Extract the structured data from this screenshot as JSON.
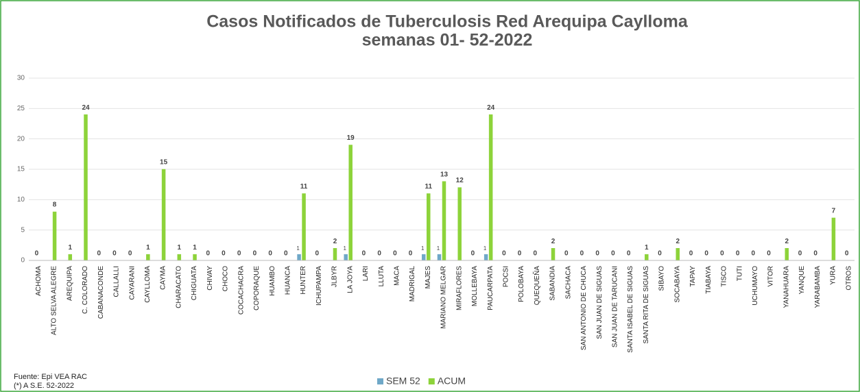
{
  "chart_data": {
    "type": "bar",
    "title": "Casos Notificados de Tuberculosis Red Arequipa Caylloma",
    "subtitle": "semanas 01- 52-2022",
    "categories": [
      "ACHOMA",
      "ALTO SELVA ALEGRE",
      "AREQUIPA",
      "C. COLORADO",
      "CABANACONDE",
      "CALLALLI",
      "CAYARANI",
      "CAYLLOMA",
      "CAYMA",
      "CHARACATO",
      "CHIGUATA",
      "CHIVAY",
      "CHOCO",
      "COCACHACRA",
      "COPORAQUE",
      "HUAMBO",
      "HUANCA",
      "HUNTER",
      "ICHUPAMPA",
      "JLBYR",
      "LA JOYA",
      "LARI",
      "LLUTA",
      "MACA",
      "MADRIGAL",
      "MAJES",
      "MARIANO MELGAR",
      "MIRAFLORES",
      "MOLLEBAYA",
      "PAUCARPATA",
      "POCSI",
      "POLOBAYA",
      "QUEQUEÑA",
      "SABANDIA",
      "SACHACA",
      "SAN ANTONIO DE CHUCA",
      "SAN JUAN DE SIGUAS",
      "SAN JUAN DE TARUCANI",
      "SANTA ISABEL DE SIGUAS",
      "SANTA RITA DE SIGUAS",
      "SIBAYO",
      "SOCABAYA",
      "TAPAY",
      "TIABAYA",
      "TISCO",
      "TUTI",
      "UCHUMAYO",
      "VITOR",
      "YANAHUARA",
      "YANQUE",
      "YARABAMBA",
      "YURA",
      "OTROS"
    ],
    "series": [
      {
        "name": "SEM 52",
        "color": "#6fa8c8",
        "values": [
          0,
          0,
          0,
          0,
          0,
          0,
          0,
          0,
          0,
          0,
          0,
          0,
          0,
          0,
          0,
          0,
          0,
          1,
          0,
          0,
          1,
          0,
          0,
          0,
          0,
          1,
          1,
          0,
          0,
          1,
          0,
          0,
          0,
          0,
          0,
          0,
          0,
          0,
          0,
          0,
          0,
          0,
          0,
          0,
          0,
          0,
          0,
          0,
          0,
          0,
          0,
          0,
          0
        ]
      },
      {
        "name": "ACUM",
        "color": "#8dd33a",
        "values": [
          0,
          8,
          1,
          24,
          0,
          0,
          0,
          1,
          15,
          1,
          1,
          0,
          0,
          0,
          0,
          0,
          0,
          11,
          0,
          2,
          19,
          0,
          0,
          0,
          0,
          11,
          13,
          12,
          0,
          24,
          0,
          0,
          0,
          2,
          0,
          0,
          0,
          0,
          0,
          1,
          0,
          2,
          0,
          0,
          0,
          0,
          0,
          0,
          2,
          0,
          0,
          7,
          0
        ]
      }
    ],
    "ylim": [
      0,
      30
    ],
    "yticks": [
      0,
      5,
      10,
      15,
      20,
      25,
      30
    ],
    "grid": true,
    "legend": "bottom",
    "notes": [
      "Fuente: Epi VEA RAC",
      "(*) A S.E. 52-2022"
    ]
  }
}
